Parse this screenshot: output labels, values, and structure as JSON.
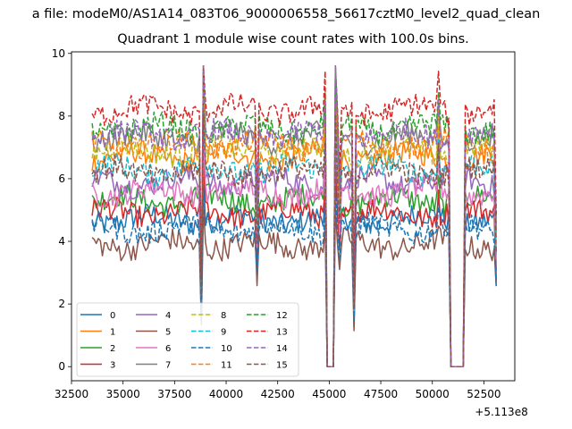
{
  "chart_data": {
    "type": "line",
    "suptitle": "a file: modeM0/AS1A14_083T06_9000006558_56617cztM0_level2_quad_clean",
    "title": "Quadrant 1 module wise count rates with 100.0s bins.",
    "xlabel": "",
    "ylabel": "",
    "x_offset_label": "+5.113e8",
    "x_offset": 511300000,
    "xlim": [
      32500,
      54000
    ],
    "ylim": [
      -0.45,
      10.05
    ],
    "x_ticks": [
      32500,
      35000,
      37500,
      40000,
      42500,
      45000,
      47500,
      50000,
      52500
    ],
    "x_tick_labels": [
      "32500",
      "35000",
      "37500",
      "40000",
      "42500",
      "45000",
      "47500",
      "50000",
      "52500"
    ],
    "y_ticks": [
      0,
      2,
      4,
      6,
      8,
      10
    ],
    "y_tick_labels": [
      "0",
      "2",
      "4",
      "6",
      "8",
      "10"
    ],
    "x_start": 33500,
    "x_end": 53100,
    "bin": 100,
    "gaps": [
      {
        "from": 44900,
        "to": 45200,
        "value": 0
      },
      {
        "from": 50900,
        "to": 51500,
        "value": 0
      }
    ],
    "dips": [
      {
        "x": 38800,
        "frac": 0.35
      },
      {
        "x": 41500,
        "frac": 0.65
      },
      {
        "x": 45500,
        "frac": 0.75
      },
      {
        "x": 46200,
        "frac": 0.3
      }
    ],
    "spikes": [
      {
        "x": 38900,
        "frac": 1.3
      },
      {
        "x": 45300,
        "frac": 1.3
      },
      {
        "x": 44800,
        "frac": 1.15
      },
      {
        "x": 50300,
        "frac": 1.15
      }
    ],
    "legend_position": "lower-left",
    "series": [
      {
        "name": "0",
        "color": "#1f77b4",
        "dash": "solid",
        "mean": 4.7
      },
      {
        "name": "1",
        "color": "#ff7f0e",
        "dash": "solid",
        "mean": 6.7
      },
      {
        "name": "2",
        "color": "#2ca02c",
        "dash": "solid",
        "mean": 5.3
      },
      {
        "name": "3",
        "color": "#d62728",
        "dash": "solid",
        "mean": 4.9
      },
      {
        "name": "4",
        "color": "#9467bd",
        "dash": "solid",
        "mean": 5.9
      },
      {
        "name": "5",
        "color": "#8c564b",
        "dash": "solid",
        "mean": 3.9
      },
      {
        "name": "6",
        "color": "#e377c2",
        "dash": "solid",
        "mean": 5.6
      },
      {
        "name": "7",
        "color": "#7f7f7f",
        "dash": "solid",
        "mean": 7.3
      },
      {
        "name": "8",
        "color": "#bcbd22",
        "dash": "dashed",
        "mean": 6.9
      },
      {
        "name": "9",
        "color": "#17becf",
        "dash": "dashed",
        "mean": 6.3
      },
      {
        "name": "10",
        "color": "#1f77b4",
        "dash": "dashed",
        "mean": 4.4
      },
      {
        "name": "11",
        "color": "#ff7f0e",
        "dash": "dashed",
        "mean": 7.1
      },
      {
        "name": "12",
        "color": "#2ca02c",
        "dash": "dashed",
        "mean": 7.6
      },
      {
        "name": "13",
        "color": "#d62728",
        "dash": "dashed",
        "mean": 8.2
      },
      {
        "name": "14",
        "color": "#9467bd",
        "dash": "dashed",
        "mean": 7.4
      },
      {
        "name": "15",
        "color": "#8c564b",
        "dash": "dashed",
        "mean": 6.2
      }
    ]
  }
}
